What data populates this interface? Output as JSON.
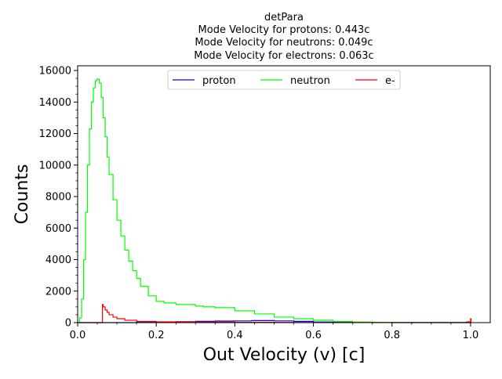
{
  "chart_data": {
    "type": "line",
    "title_lines": [
      "detPara",
      "Mode Velocity for protons: 0.443c",
      "Mode Velocity for neutrons: 0.049c",
      "Mode Velocity for electrons: 0.063c"
    ],
    "xlabel": "Out Velocity (v) [c]",
    "ylabel": "Counts",
    "xlim": [
      0.0,
      1.05
    ],
    "ylim": [
      0,
      16300
    ],
    "x_ticks": [
      0.0,
      0.2,
      0.4,
      0.6,
      0.8,
      1.0
    ],
    "x_tick_labels": [
      "0.0",
      "0.2",
      "0.4",
      "0.6",
      "0.8",
      "1.0"
    ],
    "y_ticks": [
      0,
      2000,
      4000,
      6000,
      8000,
      10000,
      12000,
      14000,
      16000
    ],
    "y_tick_labels": [
      "0",
      "2000",
      "4000",
      "6000",
      "8000",
      "10000",
      "12000",
      "14000",
      "16000"
    ],
    "grid": false,
    "legend_position": "top-center",
    "series": [
      {
        "name": "proton",
        "color": "#0000ff",
        "x": [
          0.0,
          0.1,
          0.15,
          0.2,
          0.25,
          0.3,
          0.35,
          0.4,
          0.443,
          0.5,
          0.55,
          0.6,
          0.65,
          0.7,
          0.8,
          0.9,
          1.0
        ],
        "y": [
          0,
          0,
          20,
          40,
          60,
          80,
          100,
          110,
          130,
          110,
          80,
          40,
          20,
          10,
          0,
          0,
          0
        ]
      },
      {
        "name": "neutron",
        "color": "#00ff00",
        "x": [
          0.0,
          0.005,
          0.01,
          0.015,
          0.02,
          0.025,
          0.03,
          0.035,
          0.04,
          0.045,
          0.049,
          0.055,
          0.06,
          0.065,
          0.07,
          0.075,
          0.08,
          0.09,
          0.1,
          0.11,
          0.12,
          0.13,
          0.14,
          0.15,
          0.16,
          0.18,
          0.2,
          0.22,
          0.25,
          0.3,
          0.32,
          0.35,
          0.4,
          0.45,
          0.5,
          0.55,
          0.6,
          0.65,
          0.7,
          0.75,
          0.8,
          0.85,
          0.9,
          1.0
        ],
        "y": [
          0,
          300,
          1500,
          4000,
          7000,
          10000,
          12300,
          14000,
          14900,
          15350,
          15450,
          15200,
          14300,
          13000,
          11800,
          10500,
          9400,
          7800,
          6500,
          5500,
          4600,
          3900,
          3300,
          2800,
          2300,
          1700,
          1350,
          1250,
          1150,
          1050,
          1000,
          950,
          750,
          550,
          350,
          250,
          150,
          80,
          40,
          20,
          10,
          5,
          0,
          0
        ]
      },
      {
        "name": "e-",
        "color": "#ff0000",
        "x": [
          0.0,
          0.062,
          0.063,
          0.065,
          0.07,
          0.075,
          0.08,
          0.09,
          0.1,
          0.12,
          0.15,
          0.2,
          0.3,
          0.4,
          0.5,
          0.6,
          0.7,
          0.8,
          0.9,
          0.98,
          0.99,
          1.0,
          1.001
        ],
        "y": [
          0,
          0,
          1150,
          1000,
          800,
          650,
          500,
          350,
          250,
          150,
          80,
          50,
          30,
          20,
          15,
          10,
          10,
          5,
          5,
          10,
          50,
          250,
          0
        ]
      }
    ]
  }
}
